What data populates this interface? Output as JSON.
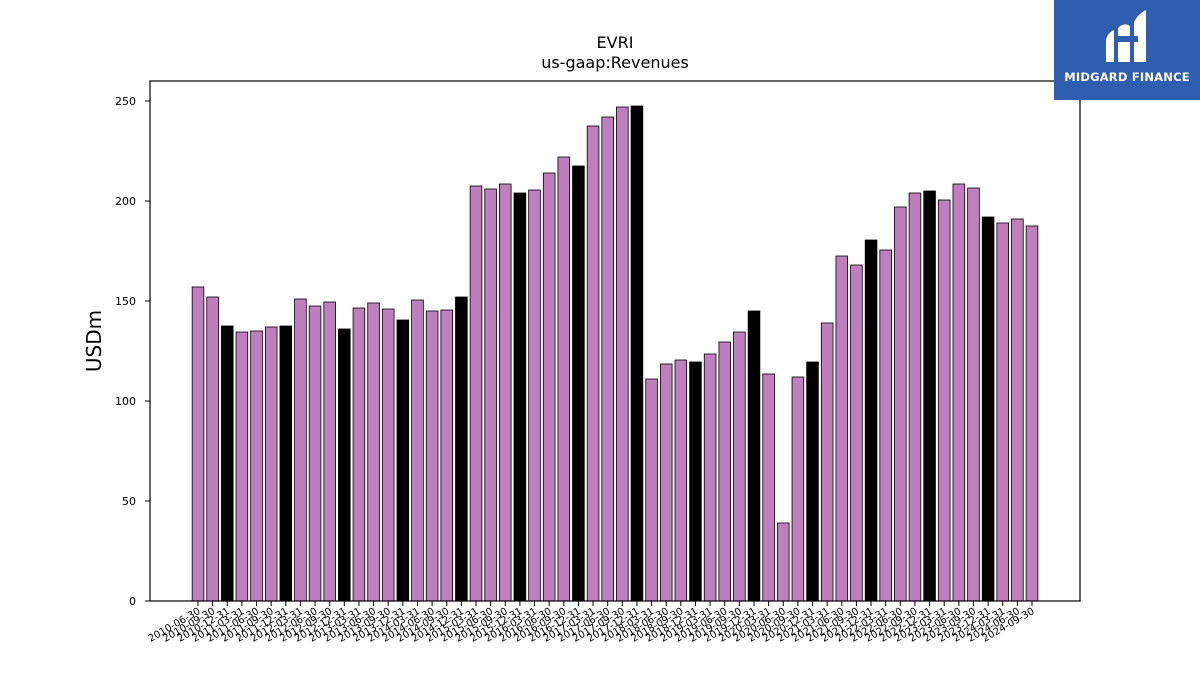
{
  "logo": {
    "text": "MIDGARD FINANCE",
    "color": "#2f5db0"
  },
  "colors": {
    "bar_default": "#bf7fbf",
    "bar_highlight": "#000000",
    "edge": "#000000"
  },
  "chart_data": {
    "type": "bar",
    "title": "EVRI",
    "subtitle": "us-gaap:Revenues",
    "xlabel": "",
    "ylabel": "USDm",
    "ylim": [
      0,
      260
    ],
    "yticks": [
      0,
      50,
      100,
      150,
      200,
      250
    ],
    "grid": false,
    "categories": [
      "2010-06-30",
      "2010-09-30",
      "2010-12-31",
      "2011-03-31",
      "2011-06-30",
      "2011-09-30",
      "2011-12-31",
      "2012-03-31",
      "2012-06-30",
      "2012-09-30",
      "2012-12-31",
      "2013-03-31",
      "2013-06-30",
      "2013-09-30",
      "2013-12-31",
      "2014-03-31",
      "2014-06-30",
      "2014-09-30",
      "2014-12-31",
      "2015-03-31",
      "2015-06-30",
      "2015-09-30",
      "2015-12-31",
      "2016-03-31",
      "2016-06-30",
      "2016-09-30",
      "2016-12-31",
      "2017-03-31",
      "2017-06-30",
      "2017-09-30",
      "2017-12-31",
      "2018-03-31",
      "2018-06-30",
      "2018-09-30",
      "2018-12-31",
      "2019-03-31",
      "2019-06-30",
      "2019-09-30",
      "2019-12-31",
      "2020-03-31",
      "2020-06-30",
      "2020-09-30",
      "2020-12-31",
      "2021-03-31",
      "2021-06-30",
      "2021-09-30",
      "2021-12-31",
      "2022-03-31",
      "2022-06-30",
      "2022-09-30",
      "2022-12-31",
      "2023-03-31",
      "2023-06-30",
      "2023-09-30",
      "2023-12-31",
      "2024-03-31",
      "2024-06-30",
      "2024-09-30"
    ],
    "values": [
      157,
      152,
      137.5,
      134.5,
      135,
      137,
      137.5,
      151,
      147.5,
      149.5,
      136,
      146.5,
      149,
      146,
      140.5,
      150.5,
      145,
      145.5,
      152,
      207.5,
      206,
      208.5,
      204,
      205.5,
      214,
      222,
      217.5,
      237.5,
      242,
      247,
      247.5,
      111,
      118.5,
      120.5,
      119.5,
      123.5,
      129.5,
      134.5,
      145,
      113.5,
      39,
      112,
      119.5,
      139,
      172.5,
      168,
      180.5,
      175.5,
      197,
      204,
      205,
      200.5,
      208.5,
      206.5,
      192,
      189,
      191,
      187.5
    ],
    "highlight": [
      false,
      false,
      true,
      false,
      false,
      false,
      true,
      false,
      false,
      false,
      true,
      false,
      false,
      false,
      true,
      false,
      false,
      false,
      true,
      false,
      false,
      false,
      true,
      false,
      false,
      false,
      true,
      false,
      false,
      false,
      true,
      false,
      false,
      false,
      true,
      false,
      false,
      false,
      true,
      false,
      false,
      false,
      true,
      false,
      false,
      false,
      true,
      false,
      false,
      false,
      true,
      false,
      false,
      false,
      true,
      false,
      false,
      false
    ]
  }
}
